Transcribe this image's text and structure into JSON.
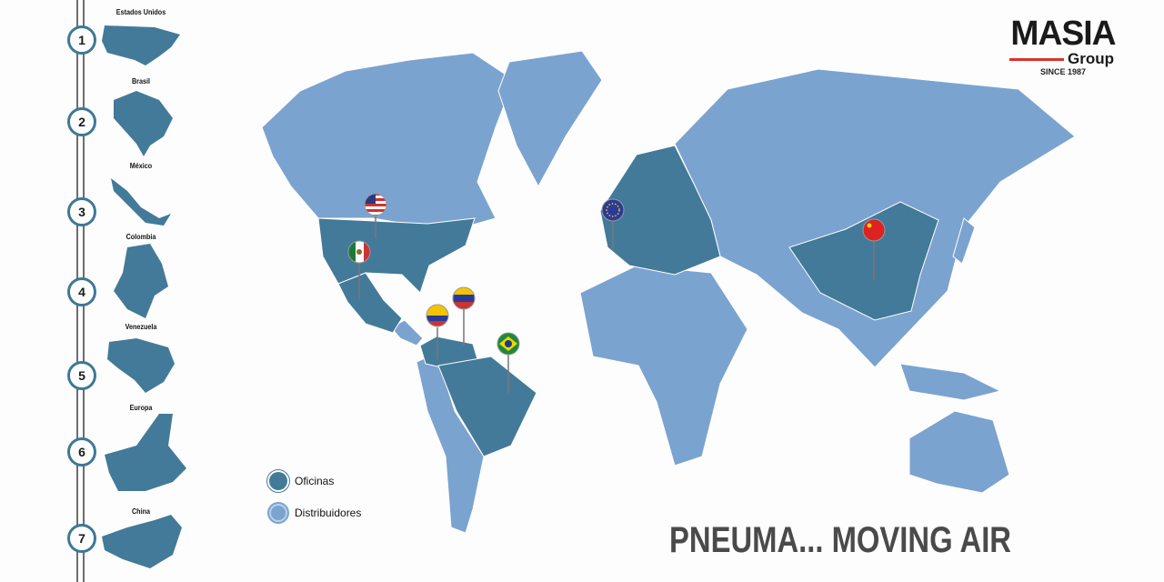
{
  "colors": {
    "office": "#437a99",
    "distributor": "#7ba3cf",
    "accent": "#d9342b"
  },
  "sidebar": {
    "items": [
      {
        "number": "1",
        "label": "Estados Unidos"
      },
      {
        "number": "2",
        "label": "Brasil"
      },
      {
        "number": "3",
        "label": "México"
      },
      {
        "number": "4",
        "label": "Colombia"
      },
      {
        "number": "5",
        "label": "Venezuela"
      },
      {
        "number": "6",
        "label": "Europa"
      },
      {
        "number": "7",
        "label": "China"
      }
    ]
  },
  "logo": {
    "name": "MASIA",
    "sub": "Group",
    "since": "SINCE 1987"
  },
  "legend": {
    "office": "Oficinas",
    "distributor": "Distribuidores"
  },
  "pins": [
    "usa-flag",
    "mexico-flag",
    "venezuela-flag",
    "colombia-flag",
    "brazil-flag",
    "eu-flag",
    "china-flag"
  ],
  "slogan": "PNEUMA... MOVING AIR"
}
